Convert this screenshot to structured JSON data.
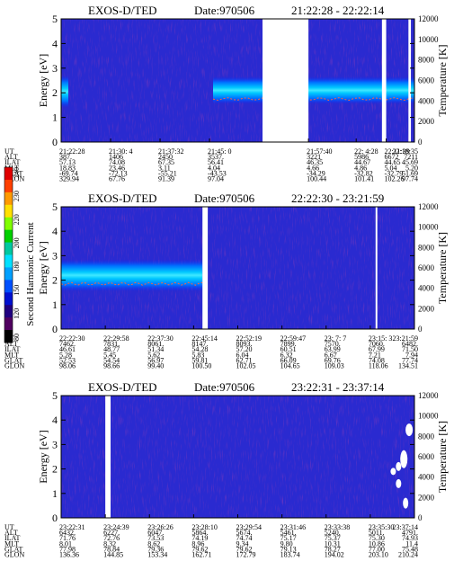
{
  "colorbar": {
    "label": "Second Harmonic Current",
    "ticks": [
      "240",
      "230",
      "220",
      "200",
      "180",
      "150",
      "120",
      "80"
    ],
    "colors": [
      "#e00000",
      "#ff4000",
      "#ff9a00",
      "#ffe000",
      "#80ff00",
      "#00d000",
      "#00c8a0",
      "#00e0ff",
      "#00a0ff",
      "#0050ff",
      "#0010d0",
      "#200080",
      "#500060",
      "#000000"
    ]
  },
  "row_labels": [
    "UT",
    "ALT",
    "ILAT",
    "MLT",
    "GLAT",
    "GLON"
  ],
  "chart_data": [
    {
      "type": "heatmap",
      "title": "EXOS-D/TED",
      "date": "Date:970506",
      "time_range": "21:22:28 - 22:22:14",
      "ylabel": "Energy [eV]",
      "y2label": "Temperature [K]",
      "ylim": [
        0,
        5
      ],
      "y2lim": [
        0,
        12000
      ],
      "yticks": [
        "0",
        "1",
        "2",
        "3",
        "4",
        "5"
      ],
      "y2ticks": [
        "0",
        "2000",
        "4000",
        "6000",
        "8000",
        "10000",
        "12000"
      ],
      "gaps": [
        [
          0.57,
          0.7
        ],
        [
          0.908,
          0.92
        ],
        [
          0.983,
          0.99
        ]
      ],
      "band": {
        "center_ev": 2.1,
        "width_ev": 1.1,
        "start": 0.43,
        "end": 1.0
      },
      "columns": [
        {
          "pos": 0.0,
          "UT": "21:22:28",
          "ALT": "387.",
          "ILAT": "57.13",
          "MLT": "18.83",
          "GLAT": "-69.74",
          "GLON": "329.94"
        },
        {
          "pos": 0.14,
          "UT": "21:30: 4",
          "ALT": "1406",
          "ILAT": "74.08",
          "MLT": "23.46",
          "GLAT": "-72.13",
          "GLON": "67.76"
        },
        {
          "pos": 0.28,
          "UT": "21:37:32",
          "ALT": "2450",
          "ILAT": "67.35",
          "MLT": "3.11",
          "GLAT": "-55.21",
          "GLON": "91.39"
        },
        {
          "pos": 0.42,
          "UT": "21:45: 0",
          "ALT": "3537.",
          "ILAT": "56.41",
          "MLT": "4.04",
          "GLAT": "-43.53",
          "GLON": "97.04"
        },
        {
          "pos": 0.7,
          "UT": "21:57:40",
          "ALT": "3221",
          "ILAT": "46.35",
          "MLT": "4.66",
          "GLAT": "-34.29",
          "GLON": "100.44"
        },
        {
          "pos": 0.835,
          "UT": "22: 4:28",
          "ALT": "5986",
          "ILAT": "44.67",
          "MLT": "4.86",
          "GLAT": "-32.82",
          "GLON": "101.41"
        },
        {
          "pos": 0.92,
          "UT": "22:11:39",
          "ALT": "6672",
          "ILAT": "44.65",
          "MLT": "5.04",
          "GLAT": "-32.79",
          "GLON": "102.26"
        },
        {
          "pos": 1.0,
          "UT": "22:18:35",
          "ALT": "7211",
          "ILAT": "45.69",
          "MLT": "5.20",
          "GLAT": "51.69",
          "GLON": "97.74"
        }
      ]
    },
    {
      "type": "heatmap",
      "title": "EXOS-D/TED",
      "date": "Date:970506",
      "time_range": "22:22:30 - 23:21:59",
      "ylabel": "Energy [eV]",
      "y2label": "Temperature [K]",
      "ylim": [
        0,
        5
      ],
      "y2lim": [
        0,
        12000
      ],
      "yticks": [
        "0",
        "1",
        "2",
        "3",
        "4",
        "5"
      ],
      "y2ticks": [
        "0",
        "2000",
        "4000",
        "6000",
        "8000",
        "10000",
        "12000"
      ],
      "gaps": [
        [
          0.4,
          0.415
        ],
        [
          0.89,
          0.895
        ]
      ],
      "band": {
        "center_ev": 2.2,
        "width_ev": 1.3,
        "start": 0.0,
        "end": 0.4
      },
      "columns": [
        {
          "pos": 0.0,
          "UT": "22:22:30",
          "ALT": "7462.",
          "ILAT": "46.61",
          "MLT": "5.28",
          "GLAT": "52.53",
          "GLON": "98.06"
        },
        {
          "pos": 0.125,
          "UT": "22:29:58",
          "ALT": "7831.",
          "ILAT": "48.77",
          "MLT": "5.45",
          "GLAT": "54.54",
          "GLON": "98.66"
        },
        {
          "pos": 0.25,
          "UT": "22:37:30",
          "ALT": "8061.",
          "ILAT": "51.34",
          "MLT": "5.62",
          "GLAT": "56.97",
          "GLON": "99.40"
        },
        {
          "pos": 0.375,
          "UT": "22:45:14",
          "ALT": "8147.",
          "ILAT": "54.28",
          "MLT": "5.83",
          "GLAT": "59.81",
          "GLON": "100.50"
        },
        {
          "pos": 0.5,
          "UT": "22:52:19",
          "ALT": "8093.",
          "ILAT": "57.20",
          "MLT": "6.04",
          "GLAT": "62.71",
          "GLON": "102.05"
        },
        {
          "pos": 0.625,
          "UT": "22:59:47",
          "ALT": "7899.",
          "ILAT": "60.51",
          "MLT": "6.32",
          "GLAT": "66.09",
          "GLON": "104.65"
        },
        {
          "pos": 0.75,
          "UT": "23: 7: 7",
          "ALT": "7570.",
          "ILAT": "63.99",
          "MLT": "6.67",
          "GLAT": "69.76",
          "GLON": "109.03"
        },
        {
          "pos": 0.875,
          "UT": "23:15: 3",
          "ALT": "7060.",
          "ILAT": "67.99",
          "MLT": "7.21",
          "GLAT": "74.08",
          "GLON": "118.06"
        },
        {
          "pos": 1.0,
          "UT": "23:21:59",
          "ALT": "6482.",
          "ILAT": "71.50",
          "MLT": "7.94",
          "GLAT": "77.74",
          "GLON": "134.51"
        }
      ]
    },
    {
      "type": "heatmap",
      "title": "EXOS-D/TED",
      "date": "Date:970506",
      "time_range": "23:22:31 - 23:37:14",
      "ylabel": "Energy [eV]",
      "y2label": "Temperature [K]",
      "ylim": [
        0,
        5
      ],
      "y2lim": [
        0,
        12000
      ],
      "yticks": [
        "0",
        "1",
        "2",
        "3",
        "4",
        "5"
      ],
      "y2ticks": [
        "0",
        "2000",
        "4000",
        "6000",
        "8000",
        "10000",
        "12000"
      ],
      "gaps": [
        [
          0.125,
          0.14
        ]
      ],
      "band": null,
      "columns": [
        {
          "pos": 0.0,
          "UT": "23:22:31",
          "ALT": "6432.",
          "ILAT": "71.76",
          "MLT": "8.01",
          "GLAT": "77.98",
          "GLON": "136.36"
        },
        {
          "pos": 0.125,
          "UT": "23:24:39",
          "ALT": "6227.",
          "ILAT": "72.76",
          "MLT": "8.32",
          "GLAT": "78.84",
          "GLON": "144.85"
        },
        {
          "pos": 0.25,
          "UT": "23:26:26",
          "ALT": "6047.",
          "ILAT": "73.53",
          "MLT": "8.62",
          "GLAT": "79.36",
          "GLON": "153.34"
        },
        {
          "pos": 0.375,
          "UT": "23:28:10",
          "ALT": "5864.",
          "ILAT": "74.19",
          "MLT": "8.96",
          "GLAT": "79.62",
          "GLON": "162.71"
        },
        {
          "pos": 0.5,
          "UT": "23:29:54",
          "ALT": "5674.",
          "ILAT": "74.74",
          "MLT": "9.34",
          "GLAT": "79.62",
          "GLON": "172.79"
        },
        {
          "pos": 0.625,
          "UT": "23:31:46",
          "ALT": "5461.",
          "ILAT": "75.17",
          "MLT": "9.80",
          "GLAT": "79.13",
          "GLON": "183.74"
        },
        {
          "pos": 0.75,
          "UT": "23:33:38",
          "ALT": "5240.",
          "ILAT": "75.37",
          "MLT": "10.31",
          "GLAT": "78.27",
          "GLON": "194.02"
        },
        {
          "pos": 0.875,
          "UT": "23:35:30",
          "ALT": "5011.",
          "ILAT": "75.30",
          "MLT": "10.86",
          "GLAT": "77.00",
          "GLON": "203.10"
        },
        {
          "pos": 1.0,
          "UT": "23:37:14",
          "ALT": "4791.",
          "ILAT": "74.93",
          "MLT": "11.4",
          "GLAT": "75.48",
          "GLON": "210.24"
        }
      ]
    }
  ]
}
